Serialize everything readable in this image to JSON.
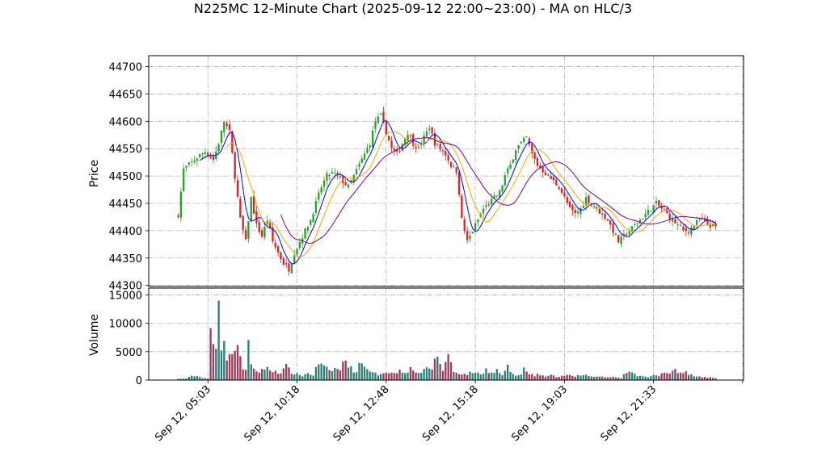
{
  "chart_data": {
    "type": "candlestick",
    "title": "N225MC 12-Minute Chart (2025-09-12 22:00~23:00) - MA on HLC/3",
    "grid": true,
    "price_panel": {
      "ylabel": "Price",
      "ylim": [
        44298,
        44720
      ],
      "yticks": [
        "44300",
        "44350",
        "44400",
        "44450",
        "44500",
        "44550",
        "44600",
        "44650",
        "44700"
      ]
    },
    "volume_panel": {
      "ylabel": "Volume",
      "ylim": [
        0,
        16200
      ],
      "yticks": [
        "0",
        "5000",
        "10000",
        "15000"
      ]
    },
    "x_count": 200,
    "x_ticks": [
      {
        "index": 11,
        "label": "Sep 12, 05:03"
      },
      {
        "index": 44,
        "label": "Sep 12, 10:18"
      },
      {
        "index": 77,
        "label": "Sep 12, 12:48"
      },
      {
        "index": 110,
        "label": "Sep 12, 15:18"
      },
      {
        "index": 143,
        "label": "Sep 12, 19:03"
      },
      {
        "index": 176,
        "label": "Sep 12, 21:33"
      },
      {
        "index": 209,
        "label": ""
      }
    ],
    "colors": {
      "up": "#2ca02c",
      "down": "#d62728",
      "vol_up": "#2a7f7a",
      "vol_down": "#a03a5a",
      "ma_short": "#0000ff",
      "ma_mid": "#ffa500",
      "ma_long": "#800080"
    },
    "close_anchors": [
      [
        0,
        44430
      ],
      [
        2,
        44512
      ],
      [
        5,
        44525
      ],
      [
        8,
        44538
      ],
      [
        10,
        44545
      ],
      [
        13,
        44530
      ],
      [
        15,
        44560
      ],
      [
        17,
        44600
      ],
      [
        19,
        44580
      ],
      [
        21,
        44500
      ],
      [
        23,
        44420
      ],
      [
        25,
        44380
      ],
      [
        27,
        44460
      ],
      [
        29,
        44410
      ],
      [
        31,
        44390
      ],
      [
        33,
        44420
      ],
      [
        35,
        44380
      ],
      [
        37,
        44360
      ],
      [
        39,
        44340
      ],
      [
        41,
        44330
      ],
      [
        43,
        44360
      ],
      [
        45,
        44380
      ],
      [
        47,
        44400
      ],
      [
        49,
        44420
      ],
      [
        51,
        44450
      ],
      [
        53,
        44480
      ],
      [
        55,
        44500
      ],
      [
        57,
        44505
      ],
      [
        59,
        44500
      ],
      [
        61,
        44490
      ],
      [
        63,
        44480
      ],
      [
        65,
        44500
      ],
      [
        67,
        44520
      ],
      [
        69,
        44540
      ],
      [
        71,
        44560
      ],
      [
        73,
        44600
      ],
      [
        75,
        44610
      ],
      [
        77,
        44580
      ],
      [
        79,
        44550
      ],
      [
        81,
        44540
      ],
      [
        83,
        44560
      ],
      [
        85,
        44580
      ],
      [
        87,
        44560
      ],
      [
        89,
        44550
      ],
      [
        91,
        44570
      ],
      [
        93,
        44590
      ],
      [
        95,
        44560
      ],
      [
        97,
        44550
      ],
      [
        99,
        44540
      ],
      [
        101,
        44520
      ],
      [
        103,
        44510
      ],
      [
        104,
        44470
      ],
      [
        105,
        44420
      ],
      [
        107,
        44380
      ],
      [
        109,
        44400
      ],
      [
        111,
        44420
      ],
      [
        113,
        44440
      ],
      [
        115,
        44450
      ],
      [
        117,
        44460
      ],
      [
        119,
        44470
      ],
      [
        121,
        44500
      ],
      [
        123,
        44520
      ],
      [
        125,
        44550
      ],
      [
        127,
        44560
      ],
      [
        129,
        44570
      ],
      [
        131,
        44540
      ],
      [
        133,
        44520
      ],
      [
        135,
        44510
      ],
      [
        137,
        44500
      ],
      [
        139,
        44490
      ],
      [
        141,
        44480
      ],
      [
        143,
        44460
      ],
      [
        145,
        44440
      ],
      [
        147,
        44430
      ],
      [
        149,
        44440
      ],
      [
        151,
        44460
      ],
      [
        153,
        44450
      ],
      [
        155,
        44440
      ],
      [
        157,
        44430
      ],
      [
        159,
        44420
      ],
      [
        161,
        44400
      ],
      [
        163,
        44380
      ],
      [
        165,
        44390
      ],
      [
        167,
        44400
      ],
      [
        169,
        44410
      ],
      [
        171,
        44420
      ],
      [
        173,
        44430
      ],
      [
        175,
        44440
      ],
      [
        177,
        44450
      ],
      [
        179,
        44440
      ],
      [
        181,
        44430
      ],
      [
        183,
        44420
      ],
      [
        185,
        44410
      ],
      [
        187,
        44400
      ],
      [
        189,
        44400
      ],
      [
        191,
        44410
      ],
      [
        193,
        44420
      ],
      [
        195,
        44415
      ],
      [
        197,
        44410
      ],
      [
        199,
        44405
      ]
    ],
    "volume_anchors": [
      [
        0,
        200
      ],
      [
        3,
        300
      ],
      [
        6,
        800
      ],
      [
        9,
        400
      ],
      [
        11,
        300
      ],
      [
        12,
        7600
      ],
      [
        13,
        6300
      ],
      [
        14,
        5000
      ],
      [
        15,
        14800
      ],
      [
        16,
        6600
      ],
      [
        17,
        8000
      ],
      [
        18,
        4200
      ],
      [
        19,
        3800
      ],
      [
        20,
        5800
      ],
      [
        21,
        5200
      ],
      [
        22,
        6600
      ],
      [
        23,
        3500
      ],
      [
        24,
        2200
      ],
      [
        25,
        2100
      ],
      [
        26,
        6400
      ],
      [
        27,
        2300
      ],
      [
        28,
        1700
      ],
      [
        30,
        1500
      ],
      [
        32,
        2200
      ],
      [
        34,
        1700
      ],
      [
        36,
        1600
      ],
      [
        38,
        1300
      ],
      [
        40,
        2300
      ],
      [
        42,
        1400
      ],
      [
        44,
        1000
      ],
      [
        46,
        800
      ],
      [
        48,
        1200
      ],
      [
        50,
        900
      ],
      [
        52,
        3000
      ],
      [
        54,
        2200
      ],
      [
        56,
        1600
      ],
      [
        58,
        2000
      ],
      [
        60,
        1800
      ],
      [
        62,
        3800
      ],
      [
        64,
        2000
      ],
      [
        66,
        1500
      ],
      [
        68,
        3800
      ],
      [
        70,
        1600
      ],
      [
        72,
        1200
      ],
      [
        74,
        1000
      ],
      [
        76,
        1400
      ],
      [
        78,
        1500
      ],
      [
        80,
        1100
      ],
      [
        82,
        1800
      ],
      [
        84,
        1500
      ],
      [
        86,
        2000
      ],
      [
        88,
        1500
      ],
      [
        90,
        1300
      ],
      [
        92,
        1900
      ],
      [
        94,
        2200
      ],
      [
        96,
        4200
      ],
      [
        98,
        1800
      ],
      [
        100,
        4400
      ],
      [
        102,
        1500
      ],
      [
        104,
        1300
      ],
      [
        106,
        1000
      ],
      [
        108,
        1200
      ],
      [
        110,
        1500
      ],
      [
        112,
        900
      ],
      [
        114,
        2000
      ],
      [
        116,
        1200
      ],
      [
        118,
        1700
      ],
      [
        120,
        900
      ],
      [
        122,
        2200
      ],
      [
        124,
        1000
      ],
      [
        126,
        700
      ],
      [
        128,
        1900
      ],
      [
        130,
        900
      ],
      [
        132,
        800
      ],
      [
        134,
        1000
      ],
      [
        136,
        600
      ],
      [
        138,
        800
      ],
      [
        140,
        600
      ],
      [
        142,
        700
      ],
      [
        144,
        900
      ],
      [
        146,
        600
      ],
      [
        148,
        800
      ],
      [
        150,
        700
      ],
      [
        152,
        900
      ],
      [
        154,
        500
      ],
      [
        156,
        700
      ],
      [
        158,
        500
      ],
      [
        160,
        600
      ],
      [
        162,
        500
      ],
      [
        164,
        400
      ],
      [
        166,
        1500
      ],
      [
        168,
        1100
      ],
      [
        170,
        900
      ],
      [
        172,
        600
      ],
      [
        174,
        500
      ],
      [
        176,
        800
      ],
      [
        178,
        700
      ],
      [
        180,
        1700
      ],
      [
        182,
        1200
      ],
      [
        184,
        2200
      ],
      [
        186,
        1100
      ],
      [
        188,
        1300
      ],
      [
        190,
        900
      ],
      [
        192,
        800
      ],
      [
        194,
        600
      ],
      [
        196,
        500
      ],
      [
        198,
        400
      ],
      [
        199,
        300
      ]
    ]
  }
}
